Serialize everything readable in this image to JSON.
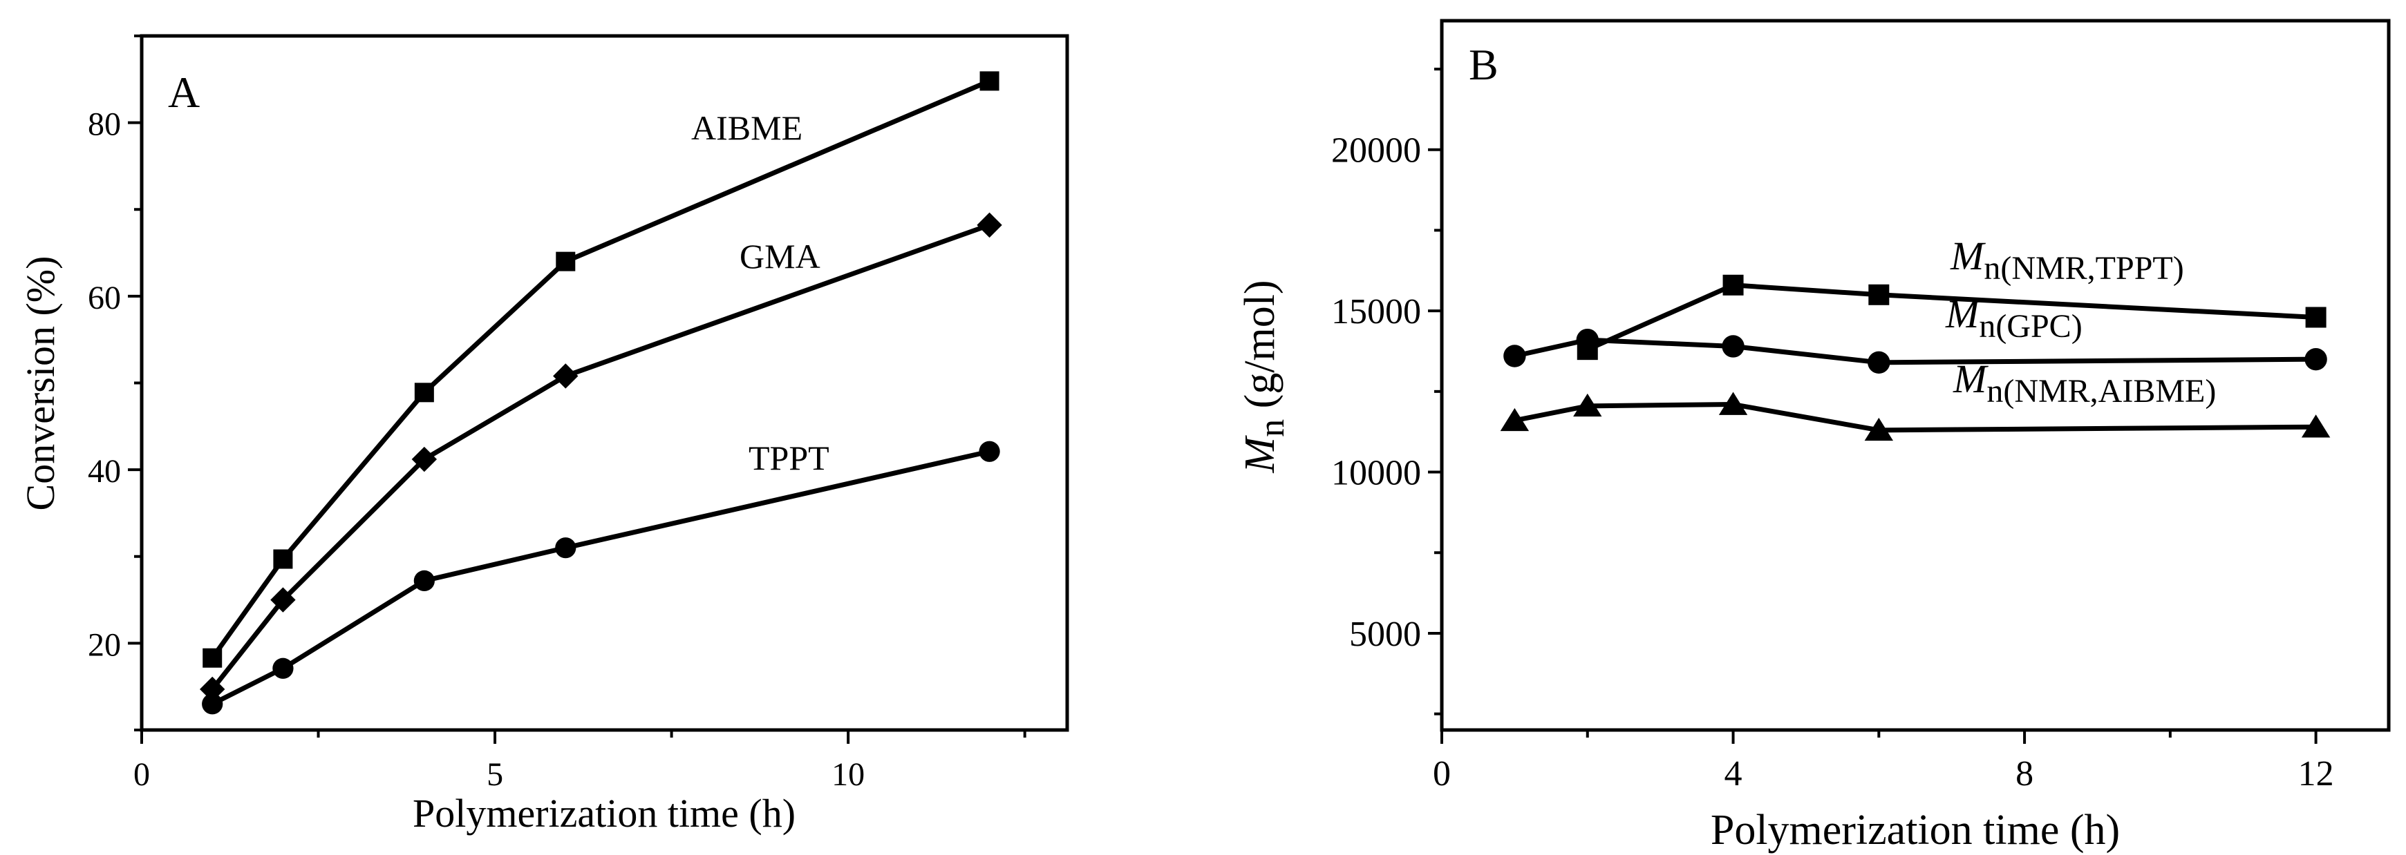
{
  "chart_data": [
    {
      "id": "A",
      "type": "line",
      "panel_label": "A",
      "xlabel": "Polymerization time (h)",
      "ylabel": "Conversion (%)",
      "xlim": [
        0,
        13.1
      ],
      "ylim": [
        10,
        90
      ],
      "xticks": [
        0,
        5,
        10
      ],
      "yticks": [
        20,
        40,
        60,
        80
      ],
      "grid": false,
      "series": [
        {
          "name": "AIBME",
          "marker": "square",
          "x": [
            1,
            2,
            4,
            6,
            12
          ],
          "values": [
            18.3,
            29.7,
            48.9,
            64.0,
            84.8
          ]
        },
        {
          "name": "GMA",
          "marker": "diamond",
          "x": [
            1,
            2,
            4,
            6,
            12
          ],
          "values": [
            14.7,
            25.0,
            41.2,
            50.8,
            68.2
          ]
        },
        {
          "name": "TPPT",
          "marker": "circle",
          "x": [
            1,
            2,
            4,
            6,
            12
          ],
          "values": [
            13.0,
            17.1,
            27.2,
            31.0,
            42.1
          ]
        }
      ]
    },
    {
      "id": "B",
      "type": "line",
      "panel_label": "B",
      "xlabel": "Polymerization time (h)",
      "ylabel_main": "M",
      "ylabel_sub": "n",
      "ylabel_unit": " (g/mol)",
      "xlim": [
        0,
        13
      ],
      "ylim": [
        2000,
        24000
      ],
      "xticks": [
        0,
        4,
        8,
        12
      ],
      "yticks": [
        5000,
        10000,
        15000,
        20000
      ],
      "grid": false,
      "series": [
        {
          "name": "Mn(NMR,TPPT)",
          "label_main": "M",
          "label_sub": "n(NMR,TPPT)",
          "marker": "square",
          "x": [
            2,
            4,
            6,
            12
          ],
          "values": [
            13800,
            15800,
            15500,
            14800
          ]
        },
        {
          "name": "Mn(GPC)",
          "label_main": "M",
          "label_sub": "n(GPC)",
          "marker": "circle",
          "x": [
            1,
            2,
            4,
            6,
            12
          ],
          "values": [
            13600,
            14100,
            13900,
            13400,
            13500
          ]
        },
        {
          "name": "Mn(NMR,AIBME)",
          "label_main": "M",
          "label_sub": "n(NMR,AIBME)",
          "marker": "triangle",
          "x": [
            1,
            2,
            4,
            6,
            12
          ],
          "values": [
            11600,
            12050,
            12100,
            11300,
            11400
          ]
        }
      ]
    }
  ]
}
